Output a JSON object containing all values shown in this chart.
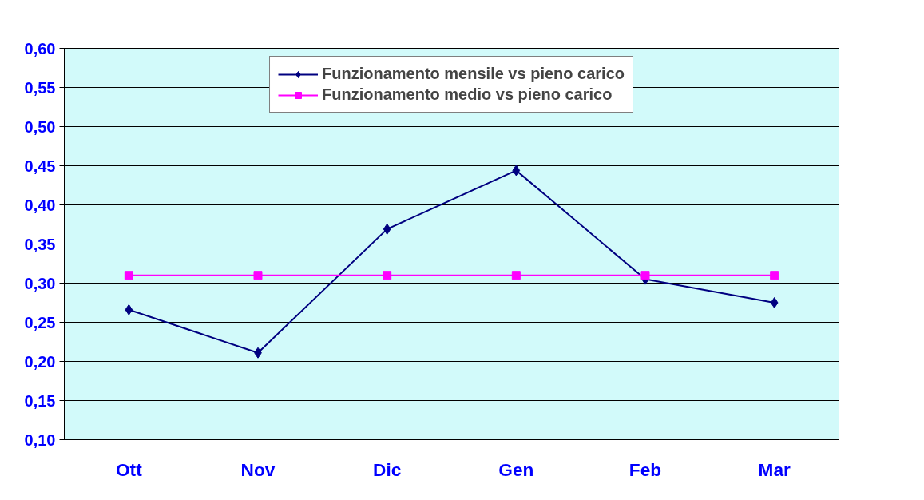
{
  "chart_data": {
    "type": "line",
    "categories": [
      "Ott",
      "Nov",
      "Dic",
      "Gen",
      "Feb",
      "Mar"
    ],
    "series": [
      {
        "name": "Funzionamento mensile vs pieno carico",
        "color": "#000080",
        "marker": "diamond",
        "values": [
          0.266,
          0.211,
          0.369,
          0.444,
          0.305,
          0.275
        ]
      },
      {
        "name": "Funzionamento medio vs pieno carico",
        "color": "#ff00ff",
        "marker": "square",
        "values": [
          0.31,
          0.31,
          0.31,
          0.31,
          0.31,
          0.31
        ]
      }
    ],
    "ylim": [
      0.1,
      0.6
    ],
    "yticks": [
      {
        "value": 0.1,
        "label": "0,10"
      },
      {
        "value": 0.15,
        "label": "0,15"
      },
      {
        "value": 0.2,
        "label": "0,20"
      },
      {
        "value": 0.25,
        "label": "0,25"
      },
      {
        "value": 0.3,
        "label": "0,30"
      },
      {
        "value": 0.35,
        "label": "0,35"
      },
      {
        "value": 0.4,
        "label": "0,40"
      },
      {
        "value": 0.45,
        "label": "0,45"
      },
      {
        "value": 0.5,
        "label": "0,50"
      },
      {
        "value": 0.55,
        "label": "0,55"
      },
      {
        "value": 0.6,
        "label": "0,60"
      }
    ],
    "grid": "y",
    "legend": "top",
    "line_style": "solid"
  }
}
